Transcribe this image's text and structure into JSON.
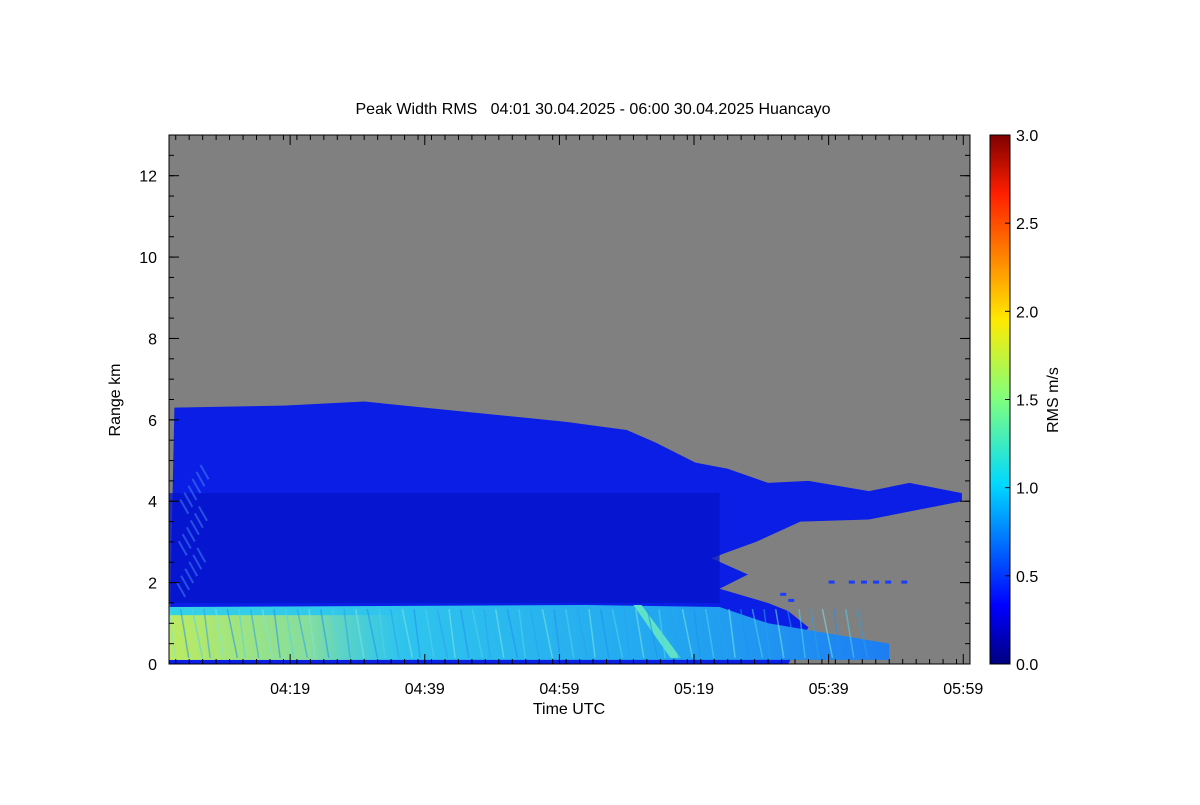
{
  "chart_data": {
    "type": "heatmap",
    "title": "Peak Width RMS   04:01 30.04.2025 - 06:00 30.04.2025 Huancayo",
    "xlabel": "Time UTC",
    "ylabel": "Range km",
    "xlim": [
      "04:01",
      "06:00"
    ],
    "ylim": [
      0,
      13
    ],
    "xticks": [
      "04:19",
      "04:39",
      "04:59",
      "05:19",
      "05:39",
      "05:59"
    ],
    "yticks": [
      0,
      2,
      4,
      6,
      8,
      10,
      12
    ],
    "background_color": "#808080",
    "colorbar": {
      "label": "RMS m/s",
      "range": [
        0.0,
        3.0
      ],
      "ticks": [
        "0.0",
        "0.5",
        "1.0",
        "1.5",
        "2.0",
        "2.5",
        "3.0"
      ],
      "colormap": "jet"
    },
    "layers": [
      {
        "name": "upper-cloud-top",
        "value_rms": 0.25,
        "color": "#0a1ee6",
        "top_km": [
          [
            4.03,
            6.3
          ],
          [
            4.3,
            6.35
          ],
          [
            4.5,
            6.45
          ],
          [
            4.75,
            6.2
          ],
          [
            4.9,
            6.05
          ],
          [
            5.0,
            5.95
          ],
          [
            5.15,
            5.75
          ],
          [
            5.22,
            5.45
          ],
          [
            5.32,
            4.95
          ],
          [
            5.4,
            4.8
          ],
          [
            5.5,
            4.45
          ],
          [
            5.6,
            4.5
          ],
          [
            5.75,
            4.25
          ],
          [
            5.85,
            4.45
          ],
          [
            5.98,
            4.2
          ]
        ]
      },
      {
        "name": "mid-layer",
        "value_rms": 0.2,
        "color": "#0614c8",
        "range_km": [
          1.5,
          4.2
        ]
      },
      {
        "name": "boundary-layer",
        "value_rms": 0.9,
        "color": "#22b4f0",
        "range_km": [
          0.1,
          1.4
        ],
        "end_time": "05:48"
      },
      {
        "name": "surface-strong-band",
        "value_rms": 1.5,
        "color": "#9be37a",
        "range_km": [
          0.1,
          1.2
        ],
        "time_range": [
          "04:01",
          "04:36"
        ]
      },
      {
        "name": "diagonal-streak",
        "value_rms": 1.3,
        "color": "#5fe1c8",
        "time_range": [
          "05:10",
          "05:17"
        ]
      }
    ]
  }
}
